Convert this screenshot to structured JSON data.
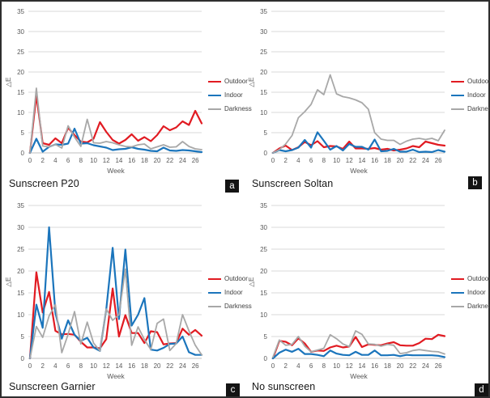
{
  "colors": {
    "outdoor": "#e11b22",
    "indoor": "#1b75bc",
    "darkness": "#a8a8a8",
    "gridline": "#d9d9d9",
    "axis_line": "#bfbfbf",
    "axis_text": "#595959",
    "badge_bg": "#141414",
    "badge_text": "#ffffff"
  },
  "panels": [
    {
      "badge": "a"
    },
    {
      "badge": "b"
    },
    {
      "badge": "c"
    },
    {
      "badge": "d"
    }
  ],
  "chart_data": [
    {
      "type": "line",
      "title": "Sunscreen P20",
      "xlabel": "Week",
      "ylabel": "△E",
      "ylim": [
        0,
        35
      ],
      "yticks": [
        0,
        5,
        10,
        15,
        20,
        25,
        30,
        35
      ],
      "xticks": [
        0,
        2,
        4,
        6,
        8,
        10,
        12,
        14,
        16,
        18,
        20,
        22,
        24,
        26
      ],
      "legend_position": "right",
      "grid": true,
      "x": [
        0,
        1,
        2,
        3,
        4,
        5,
        6,
        7,
        8,
        9,
        10,
        11,
        12,
        13,
        14,
        15,
        16,
        17,
        18,
        19,
        20,
        21,
        22,
        23,
        24,
        25,
        26,
        27
      ],
      "series": [
        {
          "name": "Outdoor",
          "color": "#e11b22",
          "values": [
            0,
            14.3,
            2.4,
            2.0,
            3.6,
            2.4,
            6.2,
            4.4,
            2.8,
            2.6,
            3.5,
            7.6,
            5.2,
            3.2,
            2.3,
            3.2,
            4.6,
            3.0,
            3.9,
            2.9,
            4.4,
            6.6,
            5.6,
            6.3,
            7.8,
            6.9,
            10.4,
            7.3
          ]
        },
        {
          "name": "Indoor",
          "color": "#1b75bc",
          "values": [
            0,
            3.5,
            0.3,
            1.5,
            2.1,
            2.0,
            2.3,
            6.0,
            2.3,
            2.4,
            1.9,
            1.6,
            1.3,
            0.7,
            0.9,
            1.0,
            1.4,
            1.0,
            0.8,
            0.5,
            0.4,
            1.3,
            0.6,
            0.5,
            0.7,
            0.6,
            0.4,
            0.2
          ]
        },
        {
          "name": "Darkness",
          "color": "#a8a8a8",
          "values": [
            0,
            16.0,
            1.7,
            1.5,
            2.1,
            1.2,
            6.7,
            3.9,
            1.6,
            8.3,
            2.5,
            2.4,
            2.8,
            2.5,
            2.0,
            1.6,
            1.5,
            2.0,
            2.2,
            1.0,
            1.5,
            2.0,
            1.4,
            1.5,
            2.8,
            1.6,
            1.0,
            0.8
          ]
        }
      ]
    },
    {
      "type": "line",
      "title": "Sunscreen Soltan",
      "xlabel": "Week",
      "ylabel": "△E",
      "ylim": [
        0,
        35
      ],
      "yticks": [
        0,
        5,
        10,
        15,
        20,
        25,
        30,
        35
      ],
      "xticks": [
        0,
        2,
        4,
        6,
        8,
        10,
        12,
        14,
        16,
        18,
        20,
        22,
        24,
        26
      ],
      "legend_position": "right",
      "grid": true,
      "x": [
        0,
        1,
        2,
        3,
        4,
        5,
        6,
        7,
        8,
        9,
        10,
        11,
        12,
        13,
        14,
        15,
        16,
        17,
        18,
        19,
        20,
        21,
        22,
        23,
        24,
        25,
        26,
        27
      ],
      "series": [
        {
          "name": "Outdoor",
          "color": "#e11b22",
          "values": [
            0,
            1.1,
            1.8,
            0.7,
            1.4,
            2.7,
            1.9,
            2.9,
            1.4,
            1.7,
            1.6,
            1.0,
            2.8,
            1.1,
            1.1,
            1.0,
            1.2,
            0.8,
            1.0,
            0.6,
            0.8,
            1.1,
            1.7,
            1.4,
            2.8,
            2.4,
            2.0,
            1.8
          ]
        },
        {
          "name": "Indoor",
          "color": "#1b75bc",
          "values": [
            0,
            0.7,
            0.4,
            0.7,
            1.3,
            3.2,
            1.3,
            5.1,
            3.0,
            0.8,
            1.7,
            0.6,
            2.2,
            1.5,
            1.5,
            0.8,
            3.3,
            0.4,
            0.5,
            1.0,
            0.3,
            0.3,
            0.8,
            0.2,
            0.3,
            0.2,
            0.7,
            0.3
          ]
        },
        {
          "name": "Darkness",
          "color": "#a8a8a8",
          "values": [
            0,
            0.8,
            2.2,
            4.3,
            8.7,
            10.2,
            12.0,
            15.6,
            14.4,
            19.3,
            14.6,
            13.9,
            13.6,
            13.1,
            12.4,
            10.8,
            5.0,
            3.4,
            3.1,
            3.1,
            2.1,
            2.9,
            3.4,
            3.6,
            3.3,
            3.6,
            3.0,
            5.6
          ]
        }
      ]
    },
    {
      "type": "line",
      "title": "Sunscreen Garnier",
      "xlabel": "Week",
      "ylabel": "△E",
      "ylim": [
        0,
        35
      ],
      "yticks": [
        0,
        5,
        10,
        15,
        20,
        25,
        30,
        35
      ],
      "xticks": [
        0,
        2,
        4,
        6,
        8,
        10,
        12,
        14,
        16,
        18,
        20,
        22,
        24,
        26
      ],
      "legend_position": "right",
      "grid": true,
      "x": [
        0,
        1,
        2,
        3,
        4,
        5,
        6,
        7,
        8,
        9,
        10,
        11,
        12,
        13,
        14,
        15,
        16,
        17,
        18,
        19,
        20,
        21,
        22,
        23,
        24,
        25,
        26,
        27
      ],
      "series": [
        {
          "name": "Outdoor",
          "color": "#e11b22",
          "values": [
            0,
            19.7,
            10.5,
            15.2,
            6.3,
            5.5,
            5.6,
            5.4,
            3.8,
            2.5,
            2.5,
            2.3,
            4.4,
            16.0,
            5.0,
            9.9,
            5.8,
            5.8,
            3.5,
            6.2,
            6.0,
            3.2,
            3.4,
            3.5,
            6.8,
            5.4,
            6.5,
            5.2
          ]
        },
        {
          "name": "Indoor",
          "color": "#1b75bc",
          "values": [
            0,
            12.3,
            7.0,
            30.0,
            10.4,
            4.5,
            8.7,
            5.4,
            4.0,
            4.7,
            2.5,
            1.7,
            11.2,
            25.3,
            9.0,
            24.9,
            7.5,
            10.0,
            13.8,
            2.0,
            1.8,
            2.4,
            3.3,
            3.4,
            5.0,
            1.4,
            0.8,
            0.8
          ]
        },
        {
          "name": "Darkness",
          "color": "#a8a8a8",
          "values": [
            0,
            7.3,
            4.8,
            9.7,
            12.3,
            1.3,
            5.5,
            10.7,
            3.3,
            8.3,
            3.5,
            1.7,
            11.3,
            8.7,
            10.0,
            20.4,
            3.0,
            7.2,
            4.3,
            2.0,
            8.0,
            9.0,
            1.8,
            3.4,
            10.0,
            6.3,
            3.0,
            0.8
          ]
        }
      ]
    },
    {
      "type": "line",
      "title": "No sunscreen",
      "xlabel": "Week",
      "ylabel": "△E",
      "ylim": [
        0,
        35
      ],
      "yticks": [
        0,
        5,
        10,
        15,
        20,
        25,
        30,
        35
      ],
      "xticks": [
        0,
        2,
        4,
        6,
        8,
        10,
        12,
        14,
        16,
        18,
        20,
        22,
        24,
        26
      ],
      "legend_position": "right",
      "grid": true,
      "x": [
        0,
        1,
        2,
        3,
        4,
        5,
        6,
        7,
        8,
        9,
        10,
        11,
        12,
        13,
        14,
        15,
        16,
        17,
        18,
        19,
        20,
        21,
        22,
        23,
        24,
        25,
        26,
        27
      ],
      "series": [
        {
          "name": "Outdoor",
          "color": "#e11b22",
          "values": [
            0,
            4.0,
            3.8,
            3.0,
            4.6,
            3.4,
            1.5,
            1.8,
            1.7,
            2.5,
            2.9,
            2.5,
            2.7,
            4.9,
            2.6,
            3.2,
            3.1,
            3.0,
            3.4,
            3.7,
            3.0,
            2.9,
            2.9,
            3.5,
            4.5,
            4.4,
            5.4,
            5.1
          ]
        },
        {
          "name": "Indoor",
          "color": "#1b75bc",
          "values": [
            0,
            1.3,
            2.0,
            1.5,
            2.2,
            1.0,
            1.0,
            0.8,
            0.5,
            1.8,
            1.1,
            0.8,
            0.7,
            1.5,
            0.8,
            0.8,
            1.8,
            0.7,
            0.7,
            0.8,
            0.5,
            0.8,
            0.7,
            0.7,
            0.7,
            0.7,
            0.6,
            0.3
          ]
        },
        {
          "name": "Darkness",
          "color": "#a8a8a8",
          "values": [
            0.3,
            4.2,
            3.0,
            3.2,
            5.0,
            2.8,
            1.5,
            1.9,
            2.3,
            5.4,
            4.5,
            3.3,
            2.7,
            6.3,
            5.5,
            3.3,
            3.2,
            2.8,
            3.2,
            3.0,
            1.1,
            1.3,
            1.8,
            2.0,
            1.8,
            1.6,
            1.5,
            1.0
          ]
        }
      ]
    }
  ]
}
